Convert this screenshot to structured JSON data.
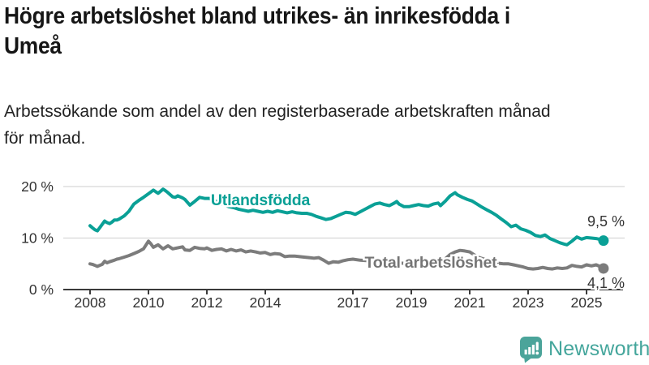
{
  "header": {
    "title": "Högre arbetslöshet bland utrikes- än inrikesfödda i\nUmeå",
    "subtitle": "Arbetssökande som andel av den registerbaserade arbetskraften månad\nför månad."
  },
  "chart_data": {
    "type": "line",
    "title": "Högre arbetslöshet bland utrikes- än inrikesfödda i Umeå",
    "xlabel": "",
    "ylabel": "Arbetssökande som andel av den registerbaserade arbetskraften",
    "x_axis": {
      "ticks": [
        2008,
        2010,
        2012,
        2014,
        2017,
        2019,
        2021,
        2023,
        2025
      ],
      "range": [
        2008,
        2025.6
      ]
    },
    "y_axis": {
      "ticks": [
        {
          "value": 0,
          "label": "0 %"
        },
        {
          "value": 10,
          "label": "10 %"
        },
        {
          "value": 20,
          "label": "20 %"
        }
      ],
      "range": [
        0,
        21
      ],
      "unit": "%"
    },
    "grid": "horizontal",
    "legend_position": "inline-labels",
    "style": {
      "grid_color": "#d8d8d8",
      "axis_color": "#3b3b3b",
      "text_color": "#333333",
      "value_label_color": "#333333"
    },
    "series": [
      {
        "id": "utlandsfodda",
        "name": "Utlandsfödda",
        "color": "#0aa096",
        "label_color": "#0aa096",
        "end_label": "9,5 %",
        "end_value": 9.5,
        "points": [
          [
            2008.0,
            12.4
          ],
          [
            2008.08,
            12.0
          ],
          [
            2008.17,
            11.6
          ],
          [
            2008.25,
            11.4
          ],
          [
            2008.33,
            12.0
          ],
          [
            2008.42,
            12.7
          ],
          [
            2008.5,
            13.3
          ],
          [
            2008.58,
            13.0
          ],
          [
            2008.67,
            12.8
          ],
          [
            2008.75,
            13.1
          ],
          [
            2008.83,
            13.5
          ],
          [
            2008.92,
            13.5
          ],
          [
            2009.0,
            13.7
          ],
          [
            2009.17,
            14.3
          ],
          [
            2009.33,
            15.2
          ],
          [
            2009.5,
            16.6
          ],
          [
            2009.67,
            17.3
          ],
          [
            2009.83,
            17.9
          ],
          [
            2010.0,
            18.6
          ],
          [
            2010.17,
            19.3
          ],
          [
            2010.25,
            19.0
          ],
          [
            2010.33,
            18.7
          ],
          [
            2010.42,
            19.1
          ],
          [
            2010.5,
            19.5
          ],
          [
            2010.58,
            19.2
          ],
          [
            2010.67,
            18.8
          ],
          [
            2010.83,
            18.0
          ],
          [
            2010.92,
            17.9
          ],
          [
            2011.0,
            18.2
          ],
          [
            2011.17,
            17.8
          ],
          [
            2011.25,
            17.5
          ],
          [
            2011.42,
            16.4
          ],
          [
            2011.58,
            17.1
          ],
          [
            2011.75,
            17.9
          ],
          [
            2011.92,
            17.7
          ],
          [
            2012.08,
            17.7
          ],
          [
            2012.25,
            17.3
          ],
          [
            2012.42,
            16.9
          ],
          [
            2012.58,
            16.5
          ],
          [
            2012.75,
            16.1
          ],
          [
            2012.92,
            15.9
          ],
          [
            2013.08,
            15.6
          ],
          [
            2013.25,
            15.4
          ],
          [
            2013.42,
            15.2
          ],
          [
            2013.58,
            15.4
          ],
          [
            2013.75,
            15.2
          ],
          [
            2013.92,
            15.0
          ],
          [
            2014.08,
            15.2
          ],
          [
            2014.25,
            15.0
          ],
          [
            2014.42,
            15.3
          ],
          [
            2014.58,
            15.1
          ],
          [
            2014.75,
            14.9
          ],
          [
            2014.92,
            15.1
          ],
          [
            2015.08,
            14.9
          ],
          [
            2015.25,
            14.8
          ],
          [
            2015.42,
            14.8
          ],
          [
            2015.58,
            14.6
          ],
          [
            2015.75,
            14.2
          ],
          [
            2015.92,
            13.9
          ],
          [
            2016.08,
            13.6
          ],
          [
            2016.25,
            13.8
          ],
          [
            2016.42,
            14.2
          ],
          [
            2016.58,
            14.6
          ],
          [
            2016.75,
            15.0
          ],
          [
            2016.92,
            14.9
          ],
          [
            2017.08,
            14.6
          ],
          [
            2017.25,
            15.1
          ],
          [
            2017.42,
            15.6
          ],
          [
            2017.58,
            16.1
          ],
          [
            2017.75,
            16.6
          ],
          [
            2017.92,
            16.8
          ],
          [
            2018.08,
            16.5
          ],
          [
            2018.25,
            16.3
          ],
          [
            2018.42,
            16.8
          ],
          [
            2018.5,
            17.1
          ],
          [
            2018.58,
            16.6
          ],
          [
            2018.75,
            16.1
          ],
          [
            2018.92,
            16.1
          ],
          [
            2019.08,
            16.3
          ],
          [
            2019.25,
            16.5
          ],
          [
            2019.42,
            16.3
          ],
          [
            2019.58,
            16.2
          ],
          [
            2019.75,
            16.6
          ],
          [
            2019.92,
            16.8
          ],
          [
            2020.0,
            16.3
          ],
          [
            2020.17,
            17.2
          ],
          [
            2020.33,
            18.2
          ],
          [
            2020.5,
            18.8
          ],
          [
            2020.58,
            18.4
          ],
          [
            2020.75,
            17.9
          ],
          [
            2020.92,
            17.5
          ],
          [
            2021.08,
            17.2
          ],
          [
            2021.25,
            16.6
          ],
          [
            2021.42,
            16.0
          ],
          [
            2021.58,
            15.5
          ],
          [
            2021.75,
            15.0
          ],
          [
            2021.92,
            14.4
          ],
          [
            2022.08,
            13.7
          ],
          [
            2022.25,
            13.0
          ],
          [
            2022.42,
            12.2
          ],
          [
            2022.58,
            12.5
          ],
          [
            2022.75,
            11.8
          ],
          [
            2022.92,
            11.5
          ],
          [
            2023.08,
            11.1
          ],
          [
            2023.25,
            10.5
          ],
          [
            2023.42,
            10.3
          ],
          [
            2023.58,
            10.6
          ],
          [
            2023.75,
            9.9
          ],
          [
            2023.92,
            9.5
          ],
          [
            2024.08,
            9.1
          ],
          [
            2024.25,
            8.8
          ],
          [
            2024.33,
            8.7
          ],
          [
            2024.5,
            9.4
          ],
          [
            2024.67,
            10.2
          ],
          [
            2024.83,
            9.8
          ],
          [
            2025.0,
            10.1
          ],
          [
            2025.17,
            10.0
          ],
          [
            2025.33,
            9.9
          ],
          [
            2025.5,
            9.7
          ],
          [
            2025.58,
            9.5
          ]
        ]
      },
      {
        "id": "total",
        "name": "Total arbetslöshet",
        "color": "#7c7c7c",
        "label_color": "#757575",
        "end_label": "4,1 %",
        "end_value": 4.1,
        "points": [
          [
            2008.0,
            5.0
          ],
          [
            2008.08,
            4.9
          ],
          [
            2008.17,
            4.7
          ],
          [
            2008.25,
            4.5
          ],
          [
            2008.33,
            4.7
          ],
          [
            2008.42,
            4.9
          ],
          [
            2008.5,
            5.5
          ],
          [
            2008.58,
            5.2
          ],
          [
            2008.67,
            5.4
          ],
          [
            2008.83,
            5.7
          ],
          [
            2008.92,
            5.9
          ],
          [
            2009.0,
            6.0
          ],
          [
            2009.17,
            6.3
          ],
          [
            2009.33,
            6.6
          ],
          [
            2009.5,
            7.0
          ],
          [
            2009.67,
            7.4
          ],
          [
            2009.83,
            7.9
          ],
          [
            2010.0,
            9.4
          ],
          [
            2010.08,
            8.9
          ],
          [
            2010.17,
            8.2
          ],
          [
            2010.33,
            8.7
          ],
          [
            2010.5,
            7.9
          ],
          [
            2010.67,
            8.5
          ],
          [
            2010.83,
            7.9
          ],
          [
            2011.0,
            8.1
          ],
          [
            2011.17,
            8.3
          ],
          [
            2011.25,
            7.7
          ],
          [
            2011.42,
            7.6
          ],
          [
            2011.58,
            8.2
          ],
          [
            2011.75,
            8.0
          ],
          [
            2011.92,
            7.9
          ],
          [
            2012.0,
            8.1
          ],
          [
            2012.17,
            7.6
          ],
          [
            2012.33,
            7.8
          ],
          [
            2012.5,
            7.9
          ],
          [
            2012.67,
            7.5
          ],
          [
            2012.83,
            7.8
          ],
          [
            2013.0,
            7.5
          ],
          [
            2013.17,
            7.7
          ],
          [
            2013.33,
            7.3
          ],
          [
            2013.5,
            7.5
          ],
          [
            2013.67,
            7.3
          ],
          [
            2013.83,
            7.1
          ],
          [
            2014.0,
            7.2
          ],
          [
            2014.17,
            6.8
          ],
          [
            2014.33,
            7.0
          ],
          [
            2014.5,
            6.9
          ],
          [
            2014.67,
            6.4
          ],
          [
            2014.83,
            6.5
          ],
          [
            2015.0,
            6.5
          ],
          [
            2015.17,
            6.4
          ],
          [
            2015.33,
            6.3
          ],
          [
            2015.5,
            6.2
          ],
          [
            2015.67,
            6.1
          ],
          [
            2015.83,
            6.2
          ],
          [
            2016.0,
            5.7
          ],
          [
            2016.17,
            5.1
          ],
          [
            2016.33,
            5.4
          ],
          [
            2016.5,
            5.3
          ],
          [
            2016.67,
            5.6
          ],
          [
            2016.83,
            5.8
          ],
          [
            2017.0,
            5.9
          ],
          [
            2017.25,
            5.7
          ],
          [
            2017.5,
            5.6
          ],
          [
            2017.75,
            5.4
          ],
          [
            2018.0,
            5.5
          ],
          [
            2018.25,
            5.3
          ],
          [
            2018.5,
            5.2
          ],
          [
            2018.75,
            5.1
          ],
          [
            2019.0,
            5.2
          ],
          [
            2019.25,
            5.3
          ],
          [
            2019.5,
            5.3
          ],
          [
            2019.75,
            5.4
          ],
          [
            2020.0,
            5.5
          ],
          [
            2020.17,
            6.0
          ],
          [
            2020.33,
            6.8
          ],
          [
            2020.5,
            7.3
          ],
          [
            2020.67,
            7.6
          ],
          [
            2020.83,
            7.5
          ],
          [
            2021.0,
            7.3
          ],
          [
            2021.17,
            6.7
          ],
          [
            2021.33,
            6.2
          ],
          [
            2021.5,
            5.9
          ],
          [
            2021.67,
            5.6
          ],
          [
            2021.83,
            5.3
          ],
          [
            2022.0,
            5.1
          ],
          [
            2022.17,
            5.0
          ],
          [
            2022.33,
            5.0
          ],
          [
            2022.5,
            4.8
          ],
          [
            2022.67,
            4.6
          ],
          [
            2022.83,
            4.4
          ],
          [
            2023.0,
            4.1
          ],
          [
            2023.17,
            4.0
          ],
          [
            2023.33,
            4.1
          ],
          [
            2023.5,
            4.3
          ],
          [
            2023.67,
            4.1
          ],
          [
            2023.83,
            4.0
          ],
          [
            2024.0,
            4.2
          ],
          [
            2024.17,
            4.1
          ],
          [
            2024.33,
            4.2
          ],
          [
            2024.5,
            4.7
          ],
          [
            2024.67,
            4.5
          ],
          [
            2024.83,
            4.4
          ],
          [
            2025.0,
            4.8
          ],
          [
            2025.17,
            4.6
          ],
          [
            2025.33,
            4.8
          ],
          [
            2025.5,
            4.4
          ],
          [
            2025.58,
            4.1
          ]
        ]
      }
    ]
  },
  "footer": {
    "brand": "Newsworthy",
    "brand_color": "#45a69c",
    "logo_icon": "bar-chart-speech-bubble-icon"
  }
}
